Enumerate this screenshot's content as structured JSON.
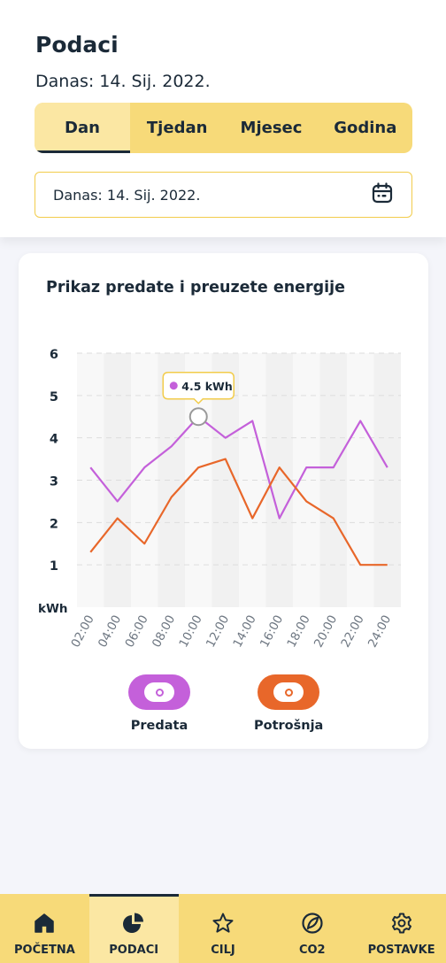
{
  "header": {
    "title": "Podaci",
    "date_line": "Danas: 14. Sij. 2022."
  },
  "tabs": [
    {
      "label": "Dan",
      "active": true
    },
    {
      "label": "Tjedan",
      "active": false
    },
    {
      "label": "Mjesec",
      "active": false
    },
    {
      "label": "Godina",
      "active": false
    }
  ],
  "date_field": {
    "value": "Danas: 14. Sij. 2022.",
    "icon": "calendar-icon"
  },
  "card": {
    "title": "Prikaz predate i preuzete energije"
  },
  "chart_data": {
    "type": "line",
    "title": "Prikaz predate i preuzete energije",
    "ylabel": "kWh",
    "xlabel": "",
    "ylim": [
      0,
      6
    ],
    "yticks": [
      6,
      5,
      4,
      3,
      2,
      1
    ],
    "x": [
      "02:00",
      "04:00",
      "06:00",
      "08:00",
      "10:00",
      "12:00",
      "14:00",
      "16:00",
      "18:00",
      "20:00",
      "22:00",
      "24:00"
    ],
    "series": [
      {
        "name": "Predata",
        "color": "#C460DA",
        "values": [
          3.3,
          2.5,
          3.3,
          3.8,
          4.5,
          4.0,
          4.4,
          2.1,
          3.3,
          3.3,
          4.4,
          3.3
        ]
      },
      {
        "name": "Potrošnja",
        "color": "#E8672A",
        "values": [
          1.3,
          2.1,
          1.5,
          2.6,
          3.3,
          3.5,
          2.1,
          3.3,
          2.5,
          2.1,
          1.0,
          1.0
        ]
      }
    ],
    "tooltip": {
      "label": "4.5 kWh",
      "series": "Predata",
      "x": "10:00",
      "value": 4.5
    },
    "grid": true
  },
  "legend": [
    {
      "label": "Predata",
      "color": "#C460DA"
    },
    {
      "label": "Potrošnja",
      "color": "#E8672A"
    }
  ],
  "bottom_nav": [
    {
      "label": "POČETNA",
      "icon": "home-icon",
      "active": false
    },
    {
      "label": "PODACI",
      "icon": "pie-chart-icon",
      "active": true
    },
    {
      "label": "CILJ",
      "icon": "star-icon",
      "active": false
    },
    {
      "label": "CO2",
      "icon": "leaf-icon",
      "active": false
    },
    {
      "label": "POSTAVKE",
      "icon": "gear-icon",
      "active": false
    }
  ]
}
